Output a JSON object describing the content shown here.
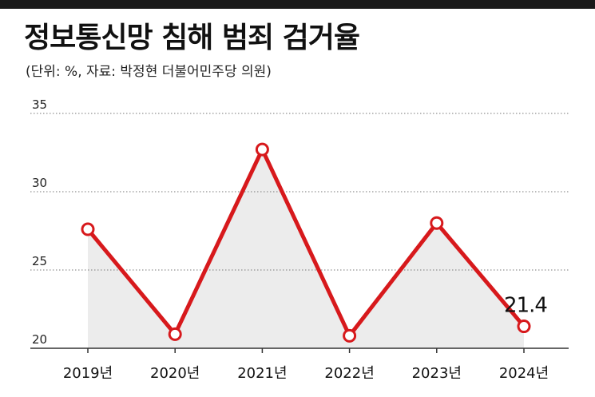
{
  "header": {
    "title": "정보통신망 침해 범죄 검거율",
    "subtitle": "(단위: %, 자료: 박정현 더불어민주당 의원)"
  },
  "chart_data": {
    "type": "line",
    "title": "정보통신망 침해 범죄 검거율",
    "subtitle": "(단위: %, 자료: 박정현 더불어민주당 의원)",
    "categories": [
      "2019년",
      "2020년",
      "2021년",
      "2022년",
      "2023년",
      "2024년"
    ],
    "series": [
      {
        "values": [
          27.6,
          20.9,
          32.7,
          20.8,
          28.0,
          21.4
        ]
      }
    ],
    "ylim": [
      20,
      35
    ],
    "yticks": [
      20,
      25,
      30,
      35
    ],
    "annotations": [
      {
        "index": 5,
        "text": "21.4"
      }
    ],
    "grid": "horizontal dotted",
    "colors": {
      "line": "#d7191c",
      "marker_fill": "#ffffff",
      "area": "#ececec",
      "axis": "#333333"
    }
  }
}
